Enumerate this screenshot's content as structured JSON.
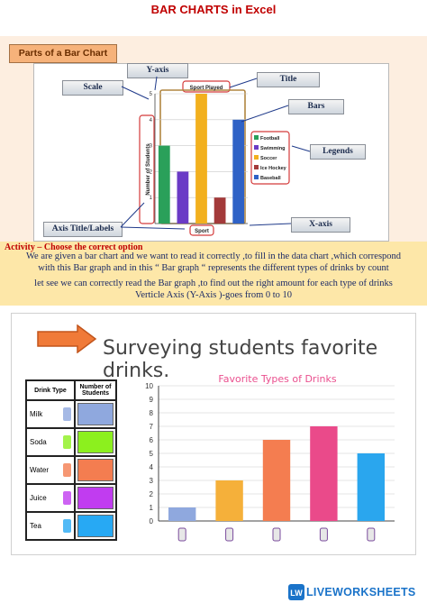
{
  "title": "BAR CHARTS in Excel",
  "parts_label": "Parts of a Bar Chart",
  "callouts": {
    "y_axis": "Y-axis",
    "scale": "Scale",
    "title": "Title",
    "bars": "Bars",
    "legends": "Legends",
    "x_axis": "X-axis",
    "axis_title": "Axis Title/Labels"
  },
  "example_chart": {
    "title": "Sport Played",
    "ylabel": "Number of Students",
    "xlabel": "Sport",
    "yticks": [
      "1",
      "2",
      "3",
      "4",
      "5"
    ],
    "legend": [
      "Football",
      "Swimming",
      "Soccer",
      "Ice Hockey",
      "Baseball"
    ],
    "colors": [
      "#2aa05a",
      "#6a3bc6",
      "#f2b01e",
      "#a33a3a",
      "#2f62c6"
    ]
  },
  "activity": {
    "heading": "Activity – Choose the correct option",
    "line1": "We are given a bar chart and we want to read it correctly ,to fill in the data chart ,which correspond",
    "line2": "with this Bar graph and in this “ Bar  graph “ represents the different types of drinks by count",
    "line3": "let see we can correctly read the Bar graph ,to find out the right amount for each type of drinks",
    "line4": "Verticle Axis (Y-Axis )-goes from 0 to 10"
  },
  "bottom": {
    "title": "Surveying students favorite drinks.",
    "table_headers": [
      "Drink Type",
      "Number of Students"
    ],
    "drinks": [
      {
        "name": "Milk",
        "color": "#8fa8de"
      },
      {
        "name": "Soda",
        "color": "#8cf01e"
      },
      {
        "name": "Water",
        "color": "#f47d50"
      },
      {
        "name": "Juice",
        "color": "#c13cf0"
      },
      {
        "name": "Tea",
        "color": "#27a9f4"
      }
    ]
  },
  "chart_data": [
    {
      "type": "bar",
      "title": "Sport Played",
      "xlabel": "Sport",
      "ylabel": "Number of Students",
      "categories": [
        "Football",
        "Swimming",
        "Soccer",
        "Ice Hockey",
        "Baseball"
      ],
      "values": [
        3,
        2,
        5,
        1,
        4
      ],
      "ylim": [
        0,
        5
      ],
      "legend": "right",
      "grid": true
    },
    {
      "type": "bar",
      "title": "Favorite Types of Drinks",
      "categories": [
        "Milk",
        "Soda",
        "Water",
        "Juice",
        "Tea"
      ],
      "values": [
        1,
        3,
        6,
        7,
        5
      ],
      "yticks": [
        "0",
        "1",
        "2",
        "3",
        "4",
        "5",
        "6",
        "7",
        "8",
        "9",
        "10"
      ],
      "ylim": [
        0,
        10
      ],
      "colors": [
        "#8fa8de",
        "#f5b03a",
        "#f47d50",
        "#ea4a8a",
        "#2aa6ee"
      ],
      "grid": true
    }
  ],
  "footer": {
    "brand": "LIVEWORKSHEETS",
    "logo_letters": "LW"
  }
}
